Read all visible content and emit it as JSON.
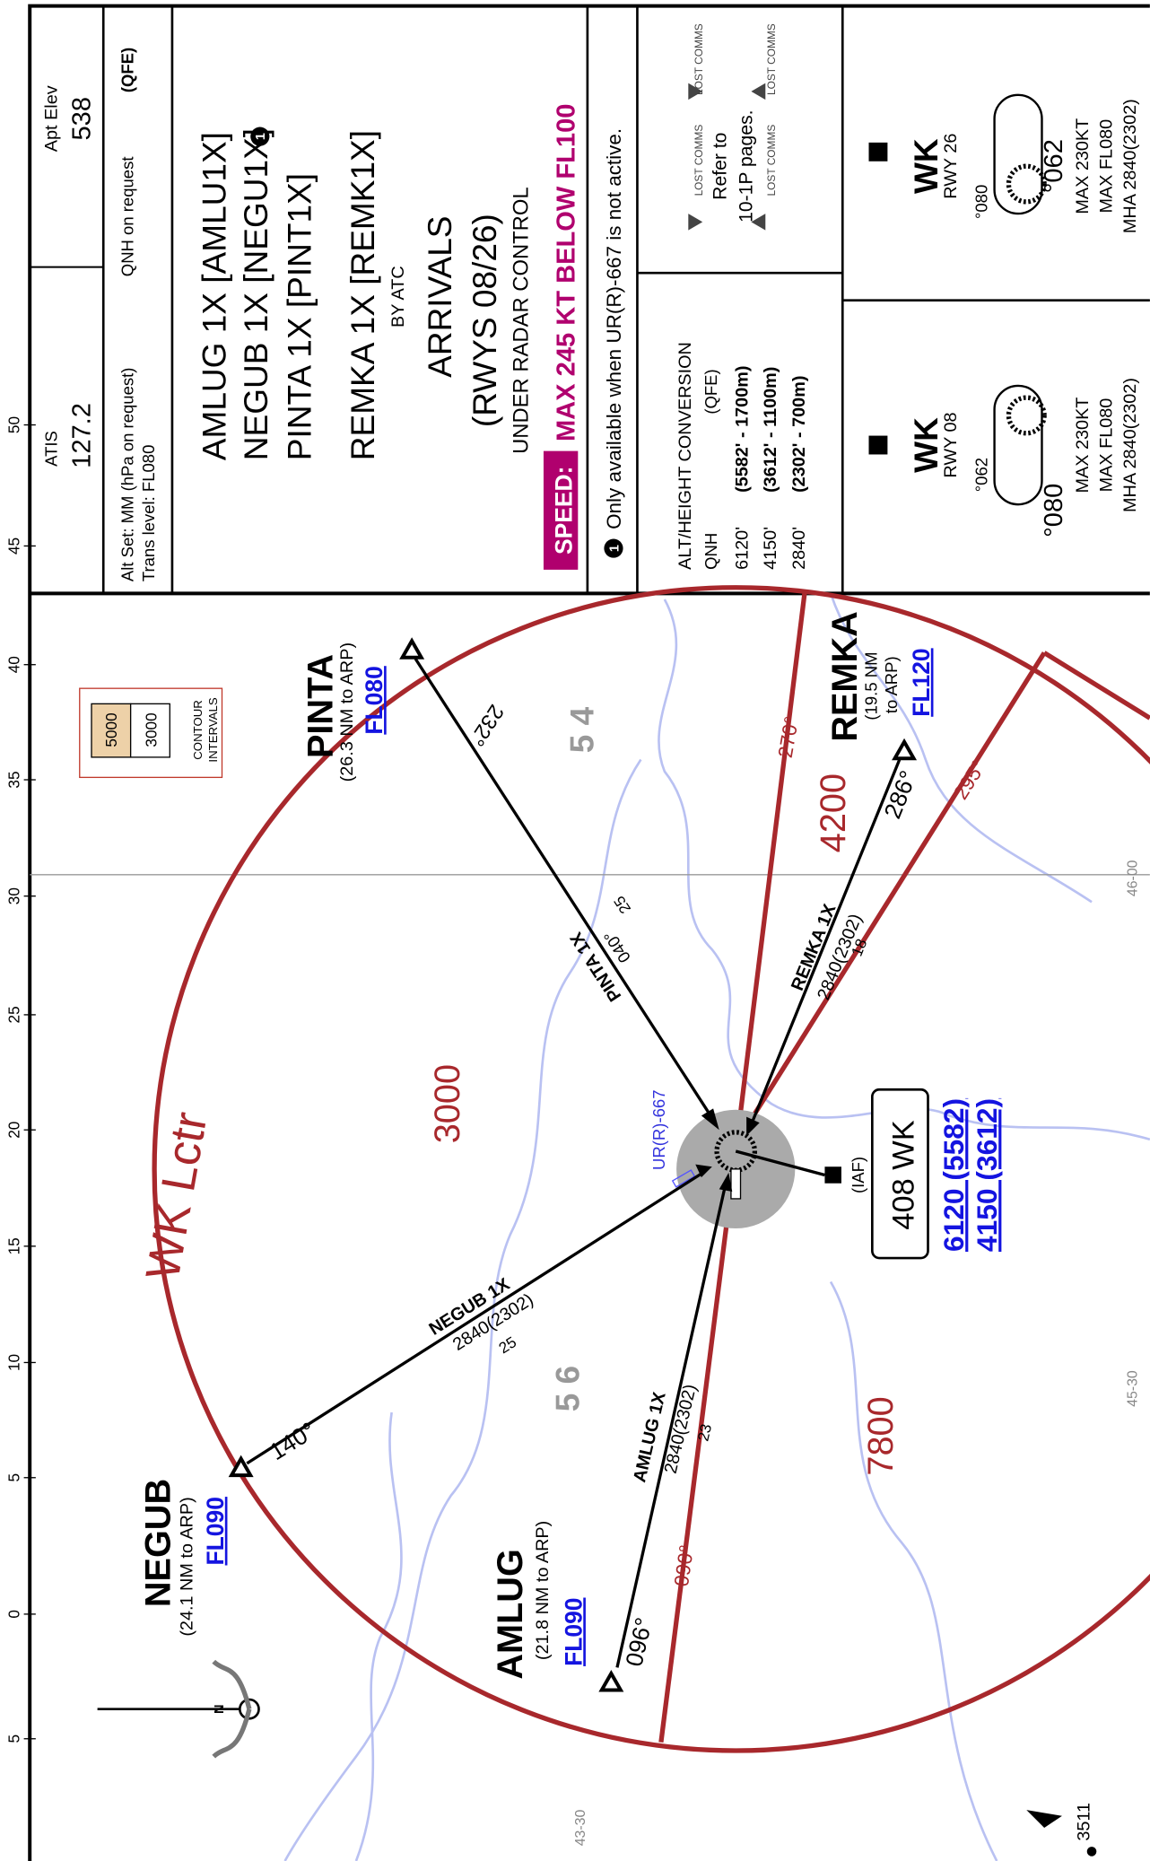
{
  "header": {
    "apt_elev_label": "Apt Elev",
    "apt_elev": "538",
    "atis_label": "ATIS",
    "atis": "127.2",
    "alt_set": "Alt Set: MM (hPa on request)",
    "qnh": "QNH on request",
    "qfe": "(QFE)",
    "trans_level": "Trans level: FL080",
    "procedures": [
      "AMLUG 1X [AMLU1X]",
      "NEGUB 1X [NEGU1X]",
      "PINTA 1X [PINT1X]",
      "REMKA 1X [REMK1X]"
    ],
    "note_marker": "1",
    "by_atc": "BY ATC",
    "arrivals": "ARRIVALS",
    "runways": "(RWYS 08/26)",
    "radar": "UNDER RADAR CONTROL",
    "speed_label": "SPEED:",
    "speed": "MAX 245 KT BELOW FL100",
    "note": "Only available when UR(R)-667 is not active."
  },
  "conversion": {
    "title": "ALT/HEIGHT CONVERSION",
    "qfe": "(QFE)",
    "qnh": "QNH",
    "rows": [
      [
        "6120'",
        "(5582' - 1700m)"
      ],
      [
        "4150'",
        "(3612' - 1100m)"
      ],
      [
        "2840'",
        "(2302' -  700m)"
      ]
    ]
  },
  "lost_comms": {
    "labels": [
      "LOST COMMS",
      "LOST COMMS",
      "LOST COMMS",
      "LOST COMMS"
    ],
    "text": [
      "Refer to",
      "10-1P pages."
    ]
  },
  "holdings": [
    {
      "ident": "WK",
      "runway": "RWY 08",
      "course_small": "°062",
      "course_large": "°080",
      "max_speed": "MAX 230KT",
      "max_fl": "MAX FL080",
      "mha": "MHA 2840(2302)"
    },
    {
      "ident": "WK",
      "runway": "RWY 26",
      "course_small": "°080",
      "course_large": "°062",
      "max_speed": "MAX 230KT",
      "max_fl": "MAX FL080",
      "mha": "MHA 2840(2302)"
    }
  ],
  "ruler": [
    "50",
    "45",
    "40",
    "35",
    "30",
    "25",
    "20",
    "15",
    "10",
    "5",
    "0",
    "5"
  ],
  "map": {
    "locator": "WK Lctr",
    "airspace": "UR(R)-667",
    "waypoints": [
      {
        "name": "PINTA",
        "distance": "(26.3 NM to ARP)",
        "level": "FL080"
      },
      {
        "name": "NEGUB",
        "distance": "(24.1 NM to ARP)",
        "level": "FL090"
      },
      {
        "name": "AMLUG",
        "distance": "(21.8 NM to ARP)",
        "level": "FL090"
      },
      {
        "name": "REMKA",
        "distance_1": "(19.5 NM",
        "distance_2": "to ARP)",
        "level": "FL120"
      }
    ],
    "routes": [
      {
        "name": "PINTA 1X",
        "course": "232°",
        "reciprocal": "040°",
        "distance": "25"
      },
      {
        "name": "NEGUB 1X",
        "course": "140°",
        "altitude": "2840(2302)",
        "distance": "25"
      },
      {
        "name": "AMLUG 1X",
        "course": "096°",
        "altitude": "2840(2302)",
        "distance": "23"
      },
      {
        "name": "REMKA 1X",
        "course": "286°",
        "altitude": "2840(2302)",
        "distance": "18"
      }
    ],
    "sectors": [
      "270°",
      "295°",
      "090°"
    ],
    "msa": [
      "3000",
      "4200",
      "7800"
    ],
    "terrain": [
      "5 4",
      "5 6"
    ],
    "grid_labels": [
      "46-00",
      "45-30",
      "43-30"
    ],
    "iaf": {
      "label": "(IAF)",
      "ident": "408 WK",
      "alt_1": "6120 (5582)",
      "alt_2": "4150 (3612)"
    },
    "contour": {
      "values": [
        "5000",
        "3000"
      ],
      "label_1": "CONTOUR",
      "label_2": "INTERVALS"
    },
    "north": "N",
    "spot": "3511"
  }
}
